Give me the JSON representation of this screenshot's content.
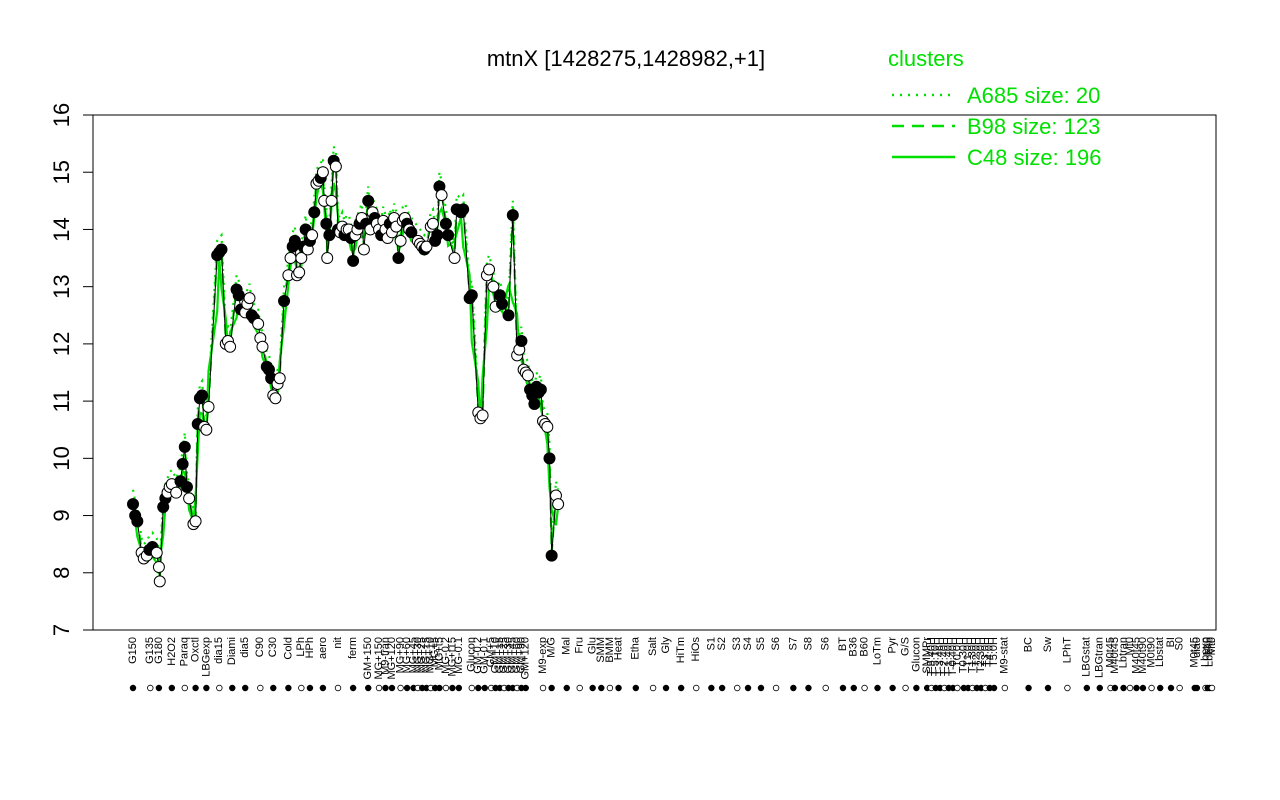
{
  "chart_data": {
    "type": "line",
    "title": "mtnX [1428275,1428982,+1]",
    "ylim": [
      7,
      16
    ],
    "yticks": [
      7,
      8,
      9,
      10,
      11,
      12,
      13,
      14,
      15,
      16
    ],
    "legend": {
      "title": "clusters",
      "placement": "top-right",
      "entries": [
        {
          "label": "A685 size: 20",
          "style": "dotted"
        },
        {
          "label": "B98 size: 123",
          "style": "dashed"
        },
        {
          "label": "C48 size: 196",
          "style": "solid"
        }
      ]
    },
    "line_color": "#00e000",
    "point_colors": {
      "filled": "#000000",
      "open": "#ffffff"
    },
    "x_labels": [
      {
        "label": "G150",
        "x": 0.0
      },
      {
        "label": "G135",
        "x": 4.0
      },
      {
        "label": "G180",
        "x": 6.0
      },
      {
        "label": "H2O2",
        "x": 9.0
      },
      {
        "label": "Paraq",
        "x": 12.0
      },
      {
        "label": "Oxctl",
        "x": 14.5
      },
      {
        "label": "LBGexp",
        "x": 17.0
      },
      {
        "label": "dia15",
        "x": 20.0
      },
      {
        "label": "Diami",
        "x": 23.0
      },
      {
        "label": "dia5",
        "x": 26.0
      },
      {
        "label": "C90",
        "x": 29.5
      },
      {
        "label": "C30",
        "x": 32.5
      },
      {
        "label": "Cold",
        "x": 36.0
      },
      {
        "label": "LPh",
        "x": 39.0
      },
      {
        "label": "HPh",
        "x": 41.0
      },
      {
        "label": "aero",
        "x": 44.0
      },
      {
        "label": "nit",
        "x": 47.5
      },
      {
        "label": "ferm",
        "x": 51.0
      },
      {
        "label": "GM+150",
        "x": 54.5
      },
      {
        "label": "MG+150",
        "x": 57.0
      },
      {
        "label": "M9-tran",
        "x": 58.5
      },
      {
        "label": "MG+120",
        "x": 60.0
      },
      {
        "label": "MG+90",
        "x": 62.0
      },
      {
        "label": "MG+60",
        "x": 63.5
      },
      {
        "label": "MG+45",
        "x": 65.0
      },
      {
        "label": "MG+30",
        "x": 66.0
      },
      {
        "label": "MG+25",
        "x": 67.0
      },
      {
        "label": "MG+15",
        "x": 68.0
      },
      {
        "label": "MG+10",
        "x": 69.0
      },
      {
        "label": "MG+5",
        "x": 70.0
      },
      {
        "label": "MG+t5",
        "x": 71.0
      },
      {
        "label": "MG-0.2",
        "x": 72.5
      },
      {
        "label": "MG+t15",
        "x": 74.0
      },
      {
        "label": "MG-0.1",
        "x": 75.5
      },
      {
        "label": "Glucon",
        "x": 78.5
      },
      {
        "label": "GM-0.2",
        "x": 80.0
      },
      {
        "label": "GM-0.1",
        "x": 81.5
      },
      {
        "label": "GM+5",
        "x": 83.0
      },
      {
        "label": "GM+10",
        "x": 84.0
      },
      {
        "label": "GM+15",
        "x": 85.0
      },
      {
        "label": "GM+25",
        "x": 86.0
      },
      {
        "label": "GM+30",
        "x": 87.0
      },
      {
        "label": "GM+45",
        "x": 88.0
      },
      {
        "label": "GM+60",
        "x": 89.0
      },
      {
        "label": "GM+90",
        "x": 90.0
      },
      {
        "label": "GM+120",
        "x": 91.0
      },
      {
        "label": "M9-exp",
        "x": 95.0
      },
      {
        "label": "M/G",
        "x": 97.0
      },
      {
        "label": "Mal",
        "x": 100.5
      },
      {
        "label": "Fru",
        "x": 103.5
      },
      {
        "label": "Glu",
        "x": 106.5
      },
      {
        "label": "SMM",
        "x": 108.5
      },
      {
        "label": "BMM",
        "x": 110.5
      },
      {
        "label": "Heat",
        "x": 112.5
      },
      {
        "label": "Etha",
        "x": 116.5
      },
      {
        "label": "Salt",
        "x": 120.5
      },
      {
        "label": "Gly",
        "x": 123.5
      },
      {
        "label": "HiTm",
        "x": 127.0
      },
      {
        "label": "HiOs",
        "x": 130.5
      },
      {
        "label": "S1",
        "x": 134.0
      },
      {
        "label": "S2",
        "x": 136.5
      },
      {
        "label": "S3",
        "x": 140.0
      },
      {
        "label": "S4",
        "x": 142.5
      },
      {
        "label": "S5",
        "x": 145.5
      },
      {
        "label": "S6",
        "x": 149.0
      },
      {
        "label": "S7",
        "x": 153.0
      },
      {
        "label": "S8",
        "x": 156.5
      },
      {
        "label": "S6",
        "x": 160.5
      },
      {
        "label": "BT",
        "x": 164.5
      },
      {
        "label": "B36",
        "x": 167.0
      },
      {
        "label": "B60",
        "x": 169.5
      },
      {
        "label": "LoTm",
        "x": 172.5
      },
      {
        "label": "Pyr",
        "x": 176.0
      },
      {
        "label": "G/S",
        "x": 179.0
      },
      {
        "label": "Glucon",
        "x": 181.5
      },
      {
        "label": "SMMPr",
        "x": 184.0
      },
      {
        "label": "T-5.40H",
        "x": 185.0
      },
      {
        "label": "T-5.10H",
        "x": 186.0
      },
      {
        "label": "T-3.46H",
        "x": 187.0
      },
      {
        "label": "T-2.40H",
        "x": 188.0
      },
      {
        "label": "T-1.40H",
        "x": 189.0
      },
      {
        "label": "T-0.40H",
        "x": 190.0
      },
      {
        "label": "T0.0H",
        "x": 191.0
      },
      {
        "label": "T0.30H",
        "x": 192.5
      },
      {
        "label": "T1.0H",
        "x": 193.5
      },
      {
        "label": "T1.30H",
        "x": 194.5
      },
      {
        "label": "T2.0H",
        "x": 195.5
      },
      {
        "label": "T2.30H",
        "x": 196.5
      },
      {
        "label": "T3.0H",
        "x": 197.5
      },
      {
        "label": "T4.0H",
        "x": 198.5
      },
      {
        "label": "T5.0H",
        "x": 199.5
      },
      {
        "label": "M9-stat",
        "x": 202.0
      },
      {
        "label": "BC",
        "x": 207.5
      },
      {
        "label": "Sw",
        "x": 212.0
      },
      {
        "label": "LPhT",
        "x": 216.5
      },
      {
        "label": "LBGstat",
        "x": 221.0
      },
      {
        "label": "LBGtran",
        "x": 224.0
      },
      {
        "label": "M0t45",
        "x": 226.5
      },
      {
        "label": "M40t45",
        "x": 227.5
      },
      {
        "label": "Lbtran",
        "x": 229.5
      },
      {
        "label": "Mt0",
        "x": 231.0
      },
      {
        "label": "M40t45",
        "x": 232.5
      },
      {
        "label": "M40t90",
        "x": 234.0
      },
      {
        "label": "M0t90",
        "x": 236.0
      },
      {
        "label": "Lbstat",
        "x": 238.0
      },
      {
        "label": "BI",
        "x": 240.5
      },
      {
        "label": "S0",
        "x": 242.5
      },
      {
        "label": "M0t45",
        "x": 246.0
      },
      {
        "label": "dia0",
        "x": 246.5
      },
      {
        "label": "Lbexp",
        "x": 248.5
      },
      {
        "label": "Mt0",
        "x": 249.0
      },
      {
        "label": "Lbexp",
        "x": 249.5
      },
      {
        "label": "Mt0",
        "x": 250.0
      }
    ],
    "points": [
      {
        "x": 0,
        "y": 9.2,
        "f": 1
      },
      {
        "x": 0.5,
        "y": 9.0,
        "f": 1
      },
      {
        "x": 1,
        "y": 8.9,
        "f": 1
      },
      {
        "x": 2,
        "y": 8.35,
        "f": 0
      },
      {
        "x": 2.5,
        "y": 8.25,
        "f": 0
      },
      {
        "x": 3.2,
        "y": 8.3,
        "f": 0
      },
      {
        "x": 3.8,
        "y": 8.4,
        "f": 1
      },
      {
        "x": 4.5,
        "y": 8.45,
        "f": 1
      },
      {
        "x": 5.5,
        "y": 8.35,
        "f": 0
      },
      {
        "x": 6,
        "y": 8.1,
        "f": 0
      },
      {
        "x": 6.2,
        "y": 7.85,
        "f": 0
      },
      {
        "x": 7,
        "y": 9.15,
        "f": 1
      },
      {
        "x": 7.5,
        "y": 9.3,
        "f": 1
      },
      {
        "x": 8,
        "y": 9.4,
        "f": 0
      },
      {
        "x": 8.5,
        "y": 9.5,
        "f": 0
      },
      {
        "x": 9,
        "y": 9.55,
        "f": 0
      },
      {
        "x": 10,
        "y": 9.4,
        "f": 0
      },
      {
        "x": 11,
        "y": 9.6,
        "f": 1
      },
      {
        "x": 11.5,
        "y": 9.9,
        "f": 1
      },
      {
        "x": 12,
        "y": 10.2,
        "f": 1
      },
      {
        "x": 12.5,
        "y": 9.5,
        "f": 1
      },
      {
        "x": 13,
        "y": 9.3,
        "f": 0
      },
      {
        "x": 14,
        "y": 8.85,
        "f": 0
      },
      {
        "x": 14.5,
        "y": 8.9,
        "f": 0
      },
      {
        "x": 15,
        "y": 10.6,
        "f": 1
      },
      {
        "x": 15.5,
        "y": 11.05,
        "f": 1
      },
      {
        "x": 16,
        "y": 11.1,
        "f": 1
      },
      {
        "x": 16.5,
        "y": 10.55,
        "f": 0
      },
      {
        "x": 17,
        "y": 10.5,
        "f": 0
      },
      {
        "x": 17.5,
        "y": 10.9,
        "f": 0
      },
      {
        "x": 19.5,
        "y": 13.55,
        "f": 1
      },
      {
        "x": 20,
        "y": 13.6,
        "f": 1
      },
      {
        "x": 20.5,
        "y": 13.65,
        "f": 1
      },
      {
        "x": 21.5,
        "y": 12.0,
        "f": 0
      },
      {
        "x": 22,
        "y": 12.05,
        "f": 0
      },
      {
        "x": 22.5,
        "y": 11.95,
        "f": 0
      },
      {
        "x": 24,
        "y": 12.95,
        "f": 1
      },
      {
        "x": 24.5,
        "y": 12.85,
        "f": 1
      },
      {
        "x": 25,
        "y": 12.6,
        "f": 1
      },
      {
        "x": 26,
        "y": 12.55,
        "f": 0
      },
      {
        "x": 26.5,
        "y": 12.7,
        "f": 0
      },
      {
        "x": 27,
        "y": 12.8,
        "f": 0
      },
      {
        "x": 27.5,
        "y": 12.5,
        "f": 1
      },
      {
        "x": 28,
        "y": 12.45,
        "f": 1
      },
      {
        "x": 29,
        "y": 12.35,
        "f": 0
      },
      {
        "x": 29.5,
        "y": 12.1,
        "f": 0
      },
      {
        "x": 30,
        "y": 11.95,
        "f": 0
      },
      {
        "x": 31,
        "y": 11.6,
        "f": 1
      },
      {
        "x": 31.5,
        "y": 11.55,
        "f": 1
      },
      {
        "x": 32,
        "y": 11.4,
        "f": 1
      },
      {
        "x": 32.5,
        "y": 11.1,
        "f": 0
      },
      {
        "x": 33,
        "y": 11.05,
        "f": 0
      },
      {
        "x": 33.5,
        "y": 11.3,
        "f": 0
      },
      {
        "x": 34,
        "y": 11.4,
        "f": 0
      },
      {
        "x": 35,
        "y": 12.75,
        "f": 1
      },
      {
        "x": 36,
        "y": 13.2,
        "f": 0
      },
      {
        "x": 36.5,
        "y": 13.5,
        "f": 0
      },
      {
        "x": 37,
        "y": 13.7,
        "f": 1
      },
      {
        "x": 37.5,
        "y": 13.8,
        "f": 1
      },
      {
        "x": 38,
        "y": 13.2,
        "f": 0
      },
      {
        "x": 38.5,
        "y": 13.25,
        "f": 0
      },
      {
        "x": 39,
        "y": 13.5,
        "f": 0
      },
      {
        "x": 39.5,
        "y": 13.7,
        "f": 1
      },
      {
        "x": 40,
        "y": 14.0,
        "f": 1
      },
      {
        "x": 40.5,
        "y": 13.65,
        "f": 0
      },
      {
        "x": 41,
        "y": 13.8,
        "f": 1
      },
      {
        "x": 41.5,
        "y": 13.9,
        "f": 0
      },
      {
        "x": 42,
        "y": 14.3,
        "f": 1
      },
      {
        "x": 42.5,
        "y": 14.8,
        "f": 0
      },
      {
        "x": 43,
        "y": 14.85,
        "f": 0
      },
      {
        "x": 43.5,
        "y": 14.9,
        "f": 1
      },
      {
        "x": 44,
        "y": 15.0,
        "f": 0
      },
      {
        "x": 44.3,
        "y": 14.5,
        "f": 0
      },
      {
        "x": 44.8,
        "y": 14.1,
        "f": 1
      },
      {
        "x": 45,
        "y": 13.5,
        "f": 0
      },
      {
        "x": 45.5,
        "y": 13.9,
        "f": 1
      },
      {
        "x": 46,
        "y": 14.5,
        "f": 0
      },
      {
        "x": 46.5,
        "y": 15.2,
        "f": 1
      },
      {
        "x": 47,
        "y": 15.1,
        "f": 0
      },
      {
        "x": 47.5,
        "y": 14.0,
        "f": 1
      },
      {
        "x": 48,
        "y": 13.95,
        "f": 0
      },
      {
        "x": 48.5,
        "y": 14.05,
        "f": 0
      },
      {
        "x": 49,
        "y": 13.9,
        "f": 1
      },
      {
        "x": 49.5,
        "y": 14.0,
        "f": 0
      },
      {
        "x": 50,
        "y": 14.0,
        "f": 0
      },
      {
        "x": 50.5,
        "y": 13.85,
        "f": 1
      },
      {
        "x": 51,
        "y": 13.45,
        "f": 1
      },
      {
        "x": 51.5,
        "y": 13.9,
        "f": 0
      },
      {
        "x": 52,
        "y": 14.0,
        "f": 0
      },
      {
        "x": 52.5,
        "y": 14.1,
        "f": 1
      },
      {
        "x": 53,
        "y": 14.2,
        "f": 0
      },
      {
        "x": 53.5,
        "y": 13.65,
        "f": 0
      },
      {
        "x": 54,
        "y": 14.1,
        "f": 1
      },
      {
        "x": 54.5,
        "y": 14.5,
        "f": 1
      },
      {
        "x": 55,
        "y": 14.0,
        "f": 0
      },
      {
        "x": 55.5,
        "y": 14.3,
        "f": 0
      },
      {
        "x": 56,
        "y": 14.2,
        "f": 1
      },
      {
        "x": 56.5,
        "y": 14.1,
        "f": 0
      },
      {
        "x": 57,
        "y": 14.0,
        "f": 0
      },
      {
        "x": 57.5,
        "y": 13.9,
        "f": 1
      },
      {
        "x": 58,
        "y": 14.15,
        "f": 0
      },
      {
        "x": 58.5,
        "y": 14.0,
        "f": 0
      },
      {
        "x": 59,
        "y": 13.85,
        "f": 0
      },
      {
        "x": 59.5,
        "y": 14.1,
        "f": 1
      },
      {
        "x": 60,
        "y": 13.95,
        "f": 0
      },
      {
        "x": 60.5,
        "y": 14.2,
        "f": 0
      },
      {
        "x": 61,
        "y": 14.05,
        "f": 0
      },
      {
        "x": 61.5,
        "y": 13.5,
        "f": 1
      },
      {
        "x": 62,
        "y": 13.8,
        "f": 0
      },
      {
        "x": 62.5,
        "y": 14.15,
        "f": 0
      },
      {
        "x": 63,
        "y": 14.2,
        "f": 0
      },
      {
        "x": 63.5,
        "y": 14.1,
        "f": 1
      },
      {
        "x": 64,
        "y": 14.0,
        "f": 0
      },
      {
        "x": 64.5,
        "y": 13.95,
        "f": 1
      },
      {
        "x": 66,
        "y": 13.8,
        "f": 0
      },
      {
        "x": 66.5,
        "y": 13.75,
        "f": 0
      },
      {
        "x": 67,
        "y": 13.7,
        "f": 0
      },
      {
        "x": 67.5,
        "y": 13.65,
        "f": 1
      },
      {
        "x": 68,
        "y": 13.7,
        "f": 0
      },
      {
        "x": 69,
        "y": 14.05,
        "f": 0
      },
      {
        "x": 69.5,
        "y": 14.1,
        "f": 0
      },
      {
        "x": 70,
        "y": 13.8,
        "f": 1
      },
      {
        "x": 70.5,
        "y": 13.9,
        "f": 1
      },
      {
        "x": 71,
        "y": 14.75,
        "f": 1
      },
      {
        "x": 71.5,
        "y": 14.6,
        "f": 0
      },
      {
        "x": 72.5,
        "y": 14.1,
        "f": 1
      },
      {
        "x": 73,
        "y": 13.9,
        "f": 1
      },
      {
        "x": 74.5,
        "y": 13.5,
        "f": 0
      },
      {
        "x": 75,
        "y": 14.35,
        "f": 1
      },
      {
        "x": 76,
        "y": 14.3,
        "f": 1
      },
      {
        "x": 76.5,
        "y": 14.35,
        "f": 1
      },
      {
        "x": 78,
        "y": 12.8,
        "f": 1
      },
      {
        "x": 78.5,
        "y": 12.85,
        "f": 1
      },
      {
        "x": 80,
        "y": 10.8,
        "f": 0
      },
      {
        "x": 80.5,
        "y": 10.7,
        "f": 0
      },
      {
        "x": 81,
        "y": 10.75,
        "f": 0
      },
      {
        "x": 82,
        "y": 13.2,
        "f": 0
      },
      {
        "x": 82.5,
        "y": 13.3,
        "f": 0
      },
      {
        "x": 83.5,
        "y": 13.0,
        "f": 0
      },
      {
        "x": 84,
        "y": 12.65,
        "f": 0
      },
      {
        "x": 85,
        "y": 12.85,
        "f": 1
      },
      {
        "x": 85.5,
        "y": 12.7,
        "f": 1
      },
      {
        "x": 87,
        "y": 12.5,
        "f": 1
      },
      {
        "x": 88,
        "y": 14.25,
        "f": 1
      },
      {
        "x": 89,
        "y": 11.8,
        "f": 0
      },
      {
        "x": 89.5,
        "y": 11.9,
        "f": 0
      },
      {
        "x": 90,
        "y": 12.05,
        "f": 1
      },
      {
        "x": 90.5,
        "y": 11.55,
        "f": 0
      },
      {
        "x": 91,
        "y": 11.5,
        "f": 0
      },
      {
        "x": 91.5,
        "y": 11.45,
        "f": 0
      },
      {
        "x": 92,
        "y": 11.2,
        "f": 1
      },
      {
        "x": 92.5,
        "y": 11.1,
        "f": 1
      },
      {
        "x": 93,
        "y": 10.95,
        "f": 1
      },
      {
        "x": 93.5,
        "y": 11.25,
        "f": 1
      },
      {
        "x": 94,
        "y": 11.15,
        "f": 1
      },
      {
        "x": 94.5,
        "y": 11.2,
        "f": 1
      },
      {
        "x": 95,
        "y": 10.65,
        "f": 0
      },
      {
        "x": 95.5,
        "y": 10.6,
        "f": 0
      },
      {
        "x": 96,
        "y": 10.55,
        "f": 0
      },
      {
        "x": 96.5,
        "y": 10.0,
        "f": 1
      },
      {
        "x": 97,
        "y": 8.3,
        "f": 1
      },
      {
        "x": 98,
        "y": 9.35,
        "f": 0
      },
      {
        "x": 98.5,
        "y": 9.2,
        "f": 0
      }
    ]
  }
}
